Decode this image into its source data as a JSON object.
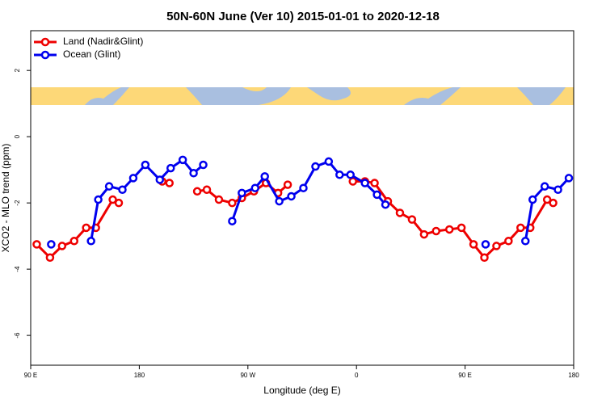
{
  "chart_data": {
    "type": "line",
    "title": "50N-60N June (Ver 10)   2015-01-01 to 2020-12-18",
    "x_label": "Longitude (deg E)",
    "y_label": "XCO2 - MLO trend (ppm)",
    "xlim": [
      90,
      540
    ],
    "ylim": [
      -6.9,
      3.2
    ],
    "xticks": [
      {
        "value": 90,
        "label": "90 E"
      },
      180,
      {
        "value": 270,
        "label": "90 W"
      },
      {
        "value": 360,
        "label": "0"
      },
      {
        "value": 450,
        "label": "90 E"
      },
      {
        "value": 540,
        "label": "180"
      }
    ],
    "yticks": [
      -6,
      -4,
      -2,
      0,
      2
    ],
    "legend": "top-left",
    "series": [
      {
        "name": "Land (Nadir&Glint)",
        "color": "#ee0000",
        "x": [
          95,
          106,
          116,
          126,
          136,
          144,
          158,
          163,
          null,
          199,
          205,
          null,
          228,
          236,
          246,
          257,
          265,
          275,
          285,
          295,
          303,
          null,
          357,
          367,
          375,
          386,
          396,
          406,
          416,
          426,
          437,
          447,
          457,
          466,
          476,
          486,
          496,
          504,
          518,
          523
        ],
        "values": [
          -3.25,
          -3.65,
          -3.3,
          -3.15,
          -2.75,
          -2.75,
          -1.9,
          -2.0,
          null,
          -1.35,
          -1.4,
          null,
          -1.65,
          -1.6,
          -1.9,
          -2.0,
          -1.85,
          -1.65,
          -1.4,
          -1.7,
          -1.45,
          null,
          -1.35,
          -1.35,
          -1.4,
          -1.95,
          -2.3,
          -2.5,
          -2.95,
          -2.85,
          -2.8,
          -2.75,
          -3.25,
          -3.65,
          -3.3,
          -3.15,
          -2.75,
          -2.75,
          -1.9,
          -2.0
        ]
      },
      {
        "name": "Ocean (Glint)",
        "color": "#0000ee",
        "x": [
          107,
          null,
          140,
          146,
          155,
          166,
          175,
          185,
          197,
          206,
          216,
          225,
          233,
          null,
          257,
          265,
          276,
          284,
          296,
          306,
          316,
          326,
          337,
          346,
          355,
          367,
          377,
          384,
          null,
          467,
          null,
          500,
          506,
          516,
          527,
          536
        ],
        "values": [
          -3.25,
          null,
          -3.15,
          -1.9,
          -1.5,
          -1.6,
          -1.25,
          -0.85,
          -1.3,
          -0.95,
          -0.7,
          -1.1,
          -0.85,
          null,
          -2.55,
          -1.7,
          -1.55,
          -1.2,
          -1.95,
          -1.8,
          -1.55,
          -0.9,
          -0.75,
          -1.15,
          -1.15,
          -1.4,
          -1.75,
          -2.05,
          null,
          -3.25,
          null,
          -3.15,
          -1.9,
          -1.5,
          -1.6,
          -1.25
        ]
      }
    ]
  }
}
